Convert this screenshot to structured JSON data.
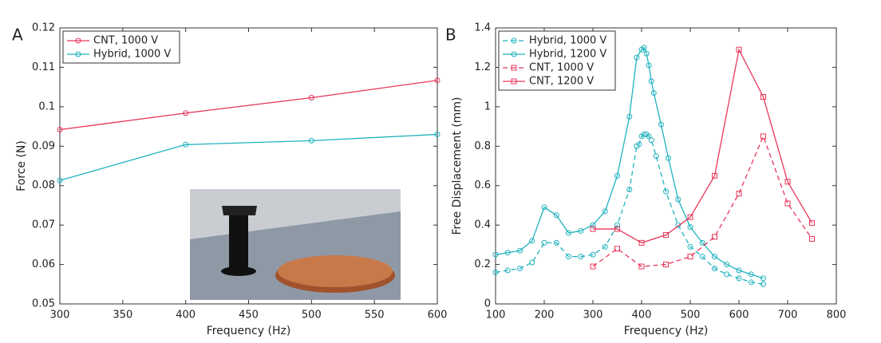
{
  "chart_data": [
    {
      "type": "line",
      "panel_label": "A",
      "xlabel": "Frequency (Hz)",
      "ylabel": "Force (N)",
      "x": [
        300,
        400,
        500,
        600
      ],
      "xlim": [
        300,
        600
      ],
      "xticks": [
        300,
        350,
        400,
        450,
        500,
        550,
        600
      ],
      "ylim": [
        0.05,
        0.12
      ],
      "yticks": [
        0.05,
        0.06,
        0.07,
        0.08,
        0.09,
        0.1,
        0.11,
        0.12
      ],
      "legend": "upper-left",
      "series": [
        {
          "name": "CNT, 1000 V",
          "color": "#e8365a",
          "marker": "circle",
          "dashed": false,
          "values": [
            0.0942,
            0.0984,
            0.1023,
            0.1067
          ]
        },
        {
          "name": "Hybrid, 1000 V",
          "color": "#1fb2be",
          "marker": "circle",
          "dashed": false,
          "values": [
            0.0813,
            0.0904,
            0.0914,
            0.093
          ]
        }
      ]
    },
    {
      "type": "line",
      "panel_label": "B",
      "xlabel": "Frequency (Hz)",
      "ylabel": "Free Displacement (mm)",
      "xlim": [
        100,
        800
      ],
      "xticks": [
        100,
        200,
        300,
        400,
        500,
        600,
        700,
        800
      ],
      "ylim": [
        0,
        1.4
      ],
      "yticks": [
        0,
        0.2,
        0.4,
        0.6,
        0.8,
        1,
        1.2,
        1.4
      ],
      "legend": "upper-left",
      "series": [
        {
          "name": "Hybrid, 1000 V",
          "color": "#1fb2be",
          "marker": "circle",
          "dashed": true,
          "x": [
            100,
            125,
            150,
            175,
            200,
            225,
            250,
            275,
            300,
            325,
            350,
            375,
            390,
            395,
            400,
            405,
            410,
            415,
            420,
            430,
            450,
            475,
            500,
            525,
            550,
            575,
            600,
            625,
            650
          ],
          "values": [
            0.16,
            0.17,
            0.18,
            0.21,
            0.31,
            0.31,
            0.24,
            0.24,
            0.25,
            0.29,
            0.4,
            0.58,
            0.8,
            0.81,
            0.85,
            0.86,
            0.86,
            0.85,
            0.83,
            0.75,
            0.57,
            0.4,
            0.29,
            0.24,
            0.18,
            0.15,
            0.13,
            0.11,
            0.1
          ]
        },
        {
          "name": "Hybrid, 1200 V",
          "color": "#1fb2be",
          "marker": "circle",
          "dashed": false,
          "x": [
            100,
            125,
            150,
            175,
            200,
            225,
            250,
            275,
            300,
            325,
            350,
            375,
            390,
            400,
            405,
            410,
            415,
            420,
            425,
            440,
            455,
            475,
            500,
            525,
            550,
            575,
            600,
            625,
            650
          ],
          "values": [
            0.25,
            0.26,
            0.27,
            0.32,
            0.49,
            0.45,
            0.36,
            0.37,
            0.4,
            0.47,
            0.65,
            0.95,
            1.25,
            1.29,
            1.3,
            1.27,
            1.21,
            1.13,
            1.07,
            0.91,
            0.74,
            0.53,
            0.39,
            0.31,
            0.24,
            0.2,
            0.17,
            0.15,
            0.13
          ]
        },
        {
          "name": "CNT, 1000 V",
          "color": "#e8365a",
          "marker": "square",
          "dashed": true,
          "x": [
            300,
            350,
            400,
            450,
            500,
            550,
            600,
            650,
            700,
            750
          ],
          "values": [
            0.19,
            0.28,
            0.19,
            0.2,
            0.24,
            0.34,
            0.56,
            0.85,
            0.51,
            0.33
          ]
        },
        {
          "name": "CNT, 1200 V",
          "color": "#e8365a",
          "marker": "square",
          "dashed": false,
          "x": [
            300,
            350,
            400,
            450,
            500,
            550,
            600,
            650,
            700,
            750
          ],
          "values": [
            0.38,
            0.38,
            0.31,
            0.35,
            0.44,
            0.65,
            1.29,
            1.05,
            0.62,
            0.41
          ]
        }
      ]
    }
  ]
}
